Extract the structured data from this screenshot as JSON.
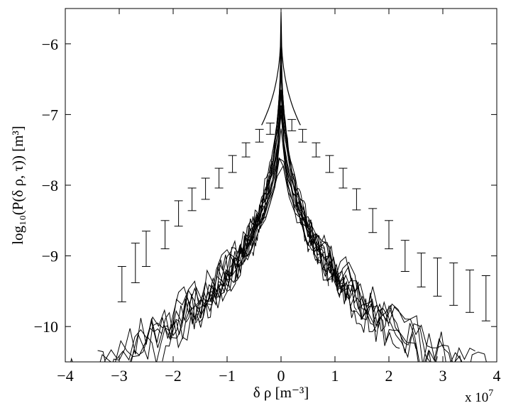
{
  "chart_data": {
    "type": "line",
    "xlabel": "δ ρ [m⁻³]",
    "ylabel": "log₁₀(P(δ ρ, τ)) [m³]",
    "x_exponent_label": "x 10",
    "x_exponent_power": "7",
    "x_scale_factor": 10000000,
    "xlim": [
      -40000000,
      40000000
    ],
    "ylim": [
      -10.5,
      -5.5
    ],
    "xticks": [
      -40000000,
      -30000000,
      -20000000,
      -10000000,
      0,
      10000000,
      20000000,
      30000000,
      40000000
    ],
    "xtick_labels": [
      "−4",
      "−3",
      "−2",
      "−1",
      "0",
      "1",
      "2",
      "3",
      "4"
    ],
    "yticks": [
      -10,
      -9,
      -8,
      -7,
      -6
    ],
    "ytick_labels": [
      "−10",
      "−9",
      "−8",
      "−7",
      "−6"
    ],
    "grid": false,
    "line_color": "#000000",
    "series": [
      {
        "peak": -5.6,
        "halfwidth": 5300000,
        "bias": 0.08,
        "noise": 0.07,
        "xmin": -5300000,
        "xmax": 5300000
      },
      {
        "peak": -5.75,
        "halfwidth": 7000000,
        "bias": 0.05,
        "noise": 0.09,
        "xmin": -7000000,
        "xmax": 7000000
      },
      {
        "peak": -5.9,
        "halfwidth": 8800000,
        "bias": 0.15,
        "noise": 0.11,
        "xmin": -8800000,
        "xmax": 8800000
      },
      {
        "peak": -6.05,
        "halfwidth": 10500000,
        "bias": 0.0,
        "noise": 0.13,
        "xmin": -10500000,
        "xmax": 10500000
      },
      {
        "peak": -6.2,
        "halfwidth": 12300000,
        "bias": 0.1,
        "noise": 0.15,
        "xmin": -12300000,
        "xmax": 12300000
      },
      {
        "peak": -6.35,
        "halfwidth": 14000000,
        "bias": 0.05,
        "noise": 0.17,
        "xmin": -14000000,
        "xmax": 14000000
      },
      {
        "peak": -6.45,
        "halfwidth": 15800000,
        "bias": 0.2,
        "noise": 0.19,
        "xmin": -15800000,
        "xmax": 15800000
      },
      {
        "peak": -6.55,
        "halfwidth": 17600000,
        "bias": 0.1,
        "noise": 0.21,
        "xmin": -17600000,
        "xmax": 17600000
      },
      {
        "peak": -6.65,
        "halfwidth": 19400000,
        "bias": 0.0,
        "noise": 0.23,
        "xmin": -20000000,
        "xmax": 20000000
      },
      {
        "peak": -6.75,
        "halfwidth": 21200000,
        "bias": 0.15,
        "noise": 0.25,
        "xmin": -22000000,
        "xmax": 22000000
      },
      {
        "peak": -6.82,
        "halfwidth": 23000000,
        "bias": 0.05,
        "noise": 0.27,
        "xmin": -25000000,
        "xmax": 25000000
      },
      {
        "peak": -6.9,
        "halfwidth": 25000000,
        "bias": 0.2,
        "noise": 0.28,
        "xmin": -28000000,
        "xmax": 29000000
      },
      {
        "peak": -6.95,
        "halfwidth": 26800000,
        "bias": 0.1,
        "noise": 0.3,
        "xmin": -31000000,
        "xmax": 32000000
      },
      {
        "peak": -7.0,
        "halfwidth": 28600000,
        "bias": 0.0,
        "noise": 0.3,
        "xmin": -34000000,
        "xmax": 36000000
      },
      {
        "peak": -7.05,
        "halfwidth": 30500000,
        "bias": 0.15,
        "noise": 0.32,
        "xmin": -37000000,
        "xmax": 40000000
      },
      {
        "peak": -7.1,
        "halfwidth": 32500000,
        "bias": 0.1,
        "noise": 0.33,
        "xmin": -40000000,
        "xmax": 40000000
      }
    ],
    "errorbars": [
      {
        "x": -29500000,
        "y": -9.4,
        "err": 0.25
      },
      {
        "x": -27000000,
        "y": -9.1,
        "err": 0.28
      },
      {
        "x": -25000000,
        "y": -8.9,
        "err": 0.25
      },
      {
        "x": -21500000,
        "y": -8.7,
        "err": 0.2
      },
      {
        "x": -19000000,
        "y": -8.4,
        "err": 0.18
      },
      {
        "x": -16500000,
        "y": -8.2,
        "err": 0.16
      },
      {
        "x": -14000000,
        "y": -8.05,
        "err": 0.15
      },
      {
        "x": -11500000,
        "y": -7.9,
        "err": 0.14
      },
      {
        "x": -9000000,
        "y": -7.7,
        "err": 0.12
      },
      {
        "x": -6500000,
        "y": -7.5,
        "err": 0.1
      },
      {
        "x": -4000000,
        "y": -7.3,
        "err": 0.09
      },
      {
        "x": -2000000,
        "y": -7.2,
        "err": 0.08
      },
      {
        "x": 2000000,
        "y": -7.15,
        "err": 0.08
      },
      {
        "x": 4000000,
        "y": -7.3,
        "err": 0.09
      },
      {
        "x": 6500000,
        "y": -7.5,
        "err": 0.1
      },
      {
        "x": 9000000,
        "y": -7.7,
        "err": 0.12
      },
      {
        "x": 11500000,
        "y": -7.9,
        "err": 0.14
      },
      {
        "x": 14000000,
        "y": -8.2,
        "err": 0.15
      },
      {
        "x": 17000000,
        "y": -8.5,
        "err": 0.17
      },
      {
        "x": 20000000,
        "y": -8.7,
        "err": 0.2
      },
      {
        "x": 23000000,
        "y": -9.0,
        "err": 0.22
      },
      {
        "x": 26000000,
        "y": -9.2,
        "err": 0.24
      },
      {
        "x": 29000000,
        "y": -9.3,
        "err": 0.27
      },
      {
        "x": 32000000,
        "y": -9.4,
        "err": 0.3
      },
      {
        "x": 35000000,
        "y": -9.5,
        "err": 0.3
      },
      {
        "x": 38000000,
        "y": -9.6,
        "err": 0.32
      }
    ]
  }
}
